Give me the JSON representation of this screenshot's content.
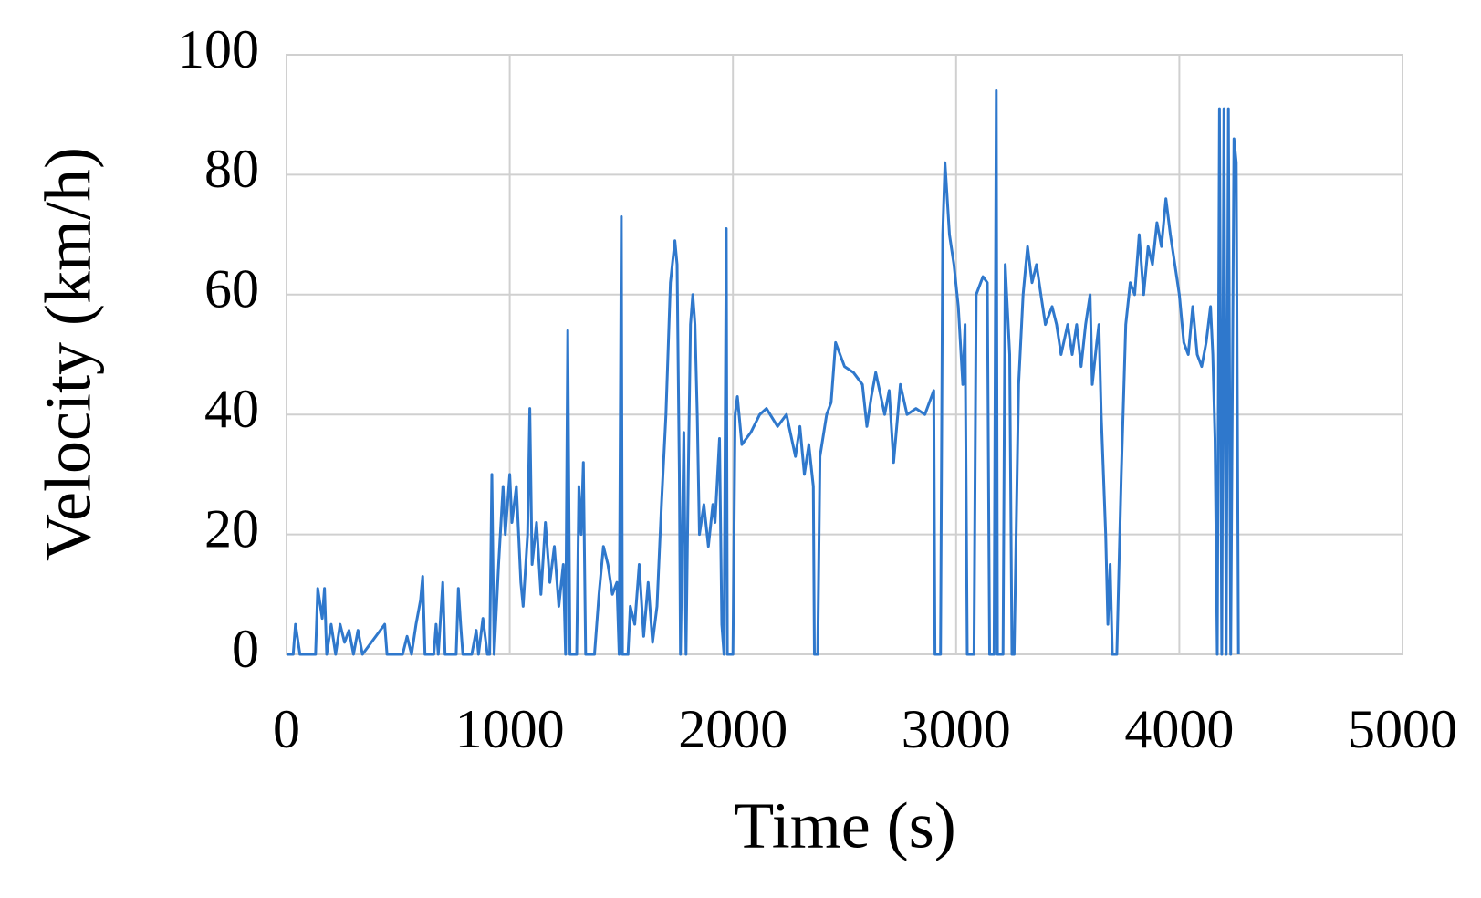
{
  "chart_data": {
    "type": "line",
    "x_label": "Time (s)",
    "y_label": "Velocity (km/h)",
    "x": [
      0,
      30,
      40,
      60,
      130,
      140,
      160,
      170,
      180,
      200,
      220,
      240,
      260,
      280,
      300,
      320,
      340,
      440,
      450,
      520,
      540,
      560,
      580,
      600,
      610,
      620,
      660,
      670,
      680,
      700,
      710,
      760,
      770,
      780,
      790,
      830,
      850,
      860,
      880,
      900,
      910,
      920,
      930,
      950,
      970,
      980,
      1000,
      1010,
      1030,
      1050,
      1060,
      1080,
      1090,
      1100,
      1120,
      1140,
      1160,
      1180,
      1200,
      1220,
      1240,
      1250,
      1260,
      1270,
      1300,
      1310,
      1320,
      1330,
      1340,
      1380,
      1400,
      1420,
      1440,
      1460,
      1480,
      1490,
      1500,
      1505,
      1530,
      1540,
      1560,
      1580,
      1600,
      1620,
      1640,
      1660,
      1680,
      1700,
      1720,
      1740,
      1750,
      1760,
      1765,
      1780,
      1790,
      1800,
      1810,
      1820,
      1830,
      1840,
      1850,
      1870,
      1890,
      1910,
      1920,
      1940,
      1950,
      1960,
      1970,
      1975,
      2000,
      2010,
      2020,
      2040,
      2080,
      2120,
      2150,
      2200,
      2240,
      2280,
      2300,
      2320,
      2340,
      2360,
      2365,
      2380,
      2390,
      2420,
      2440,
      2460,
      2500,
      2540,
      2580,
      2600,
      2620,
      2640,
      2680,
      2700,
      2720,
      2750,
      2780,
      2820,
      2860,
      2880,
      2900,
      2905,
      2930,
      2940,
      2950,
      2970,
      2990,
      3010,
      3030,
      3040,
      3050,
      3080,
      3090,
      3120,
      3140,
      3150,
      3170,
      3180,
      3185,
      3210,
      3220,
      3240,
      3250,
      3260,
      3280,
      3300,
      3320,
      3340,
      3360,
      3380,
      3400,
      3430,
      3450,
      3470,
      3500,
      3520,
      3540,
      3560,
      3580,
      3600,
      3610,
      3630,
      3640,
      3650,
      3670,
      3680,
      3690,
      3700,
      3720,
      3740,
      3760,
      3780,
      3800,
      3820,
      3840,
      3860,
      3880,
      3900,
      3920,
      3940,
      3960,
      3980,
      4000,
      4020,
      4040,
      4060,
      4080,
      4100,
      4120,
      4140,
      4150,
      4160,
      4170,
      4180,
      4190,
      4200,
      4210,
      4220,
      4230,
      4245,
      4255,
      4265
    ],
    "values": [
      0,
      0,
      5,
      0,
      0,
      11,
      6,
      11,
      0,
      5,
      0,
      5,
      2,
      4,
      0,
      4,
      0,
      5,
      0,
      0,
      3,
      0,
      5,
      9,
      13,
      0,
      0,
      5,
      0,
      12,
      0,
      0,
      11,
      5,
      0,
      0,
      4,
      0,
      6,
      0,
      0,
      30,
      0,
      15,
      28,
      20,
      30,
      22,
      28,
      12,
      8,
      20,
      41,
      15,
      22,
      10,
      22,
      12,
      18,
      8,
      15,
      0,
      54,
      0,
      0,
      28,
      20,
      32,
      0,
      0,
      10,
      18,
      15,
      10,
      12,
      0,
      73,
      0,
      0,
      8,
      5,
      15,
      3,
      12,
      2,
      8,
      25,
      40,
      62,
      69,
      65,
      30,
      0,
      37,
      0,
      30,
      55,
      60,
      55,
      40,
      20,
      25,
      18,
      25,
      22,
      36,
      5,
      0,
      71,
      0,
      0,
      40,
      43,
      35,
      37,
      40,
      41,
      38,
      40,
      33,
      38,
      30,
      35,
      28,
      0,
      0,
      33,
      40,
      42,
      52,
      48,
      47,
      45,
      38,
      43,
      47,
      40,
      44,
      32,
      45,
      40,
      41,
      40,
      42,
      44,
      0,
      0,
      70,
      82,
      70,
      65,
      58,
      45,
      55,
      0,
      0,
      60,
      63,
      62,
      0,
      0,
      94,
      0,
      0,
      65,
      50,
      0,
      0,
      45,
      60,
      68,
      62,
      65,
      60,
      55,
      58,
      55,
      50,
      55,
      50,
      55,
      48,
      55,
      60,
      45,
      52,
      55,
      40,
      20,
      5,
      15,
      0,
      0,
      30,
      55,
      62,
      60,
      70,
      60,
      68,
      65,
      72,
      68,
      76,
      70,
      65,
      60,
      52,
      50,
      58,
      50,
      48,
      52,
      58,
      50,
      36,
      0,
      91,
      0,
      91,
      0,
      91,
      0,
      86,
      82,
      0
    ],
    "color": "#2f78cc",
    "xlim": [
      0,
      5000
    ],
    "xticks": [
      0,
      1000,
      2000,
      3000,
      4000,
      5000
    ],
    "ylim": [
      0,
      100
    ],
    "yticks": [
      0,
      20,
      40,
      60,
      80,
      100
    ],
    "grid": true
  }
}
